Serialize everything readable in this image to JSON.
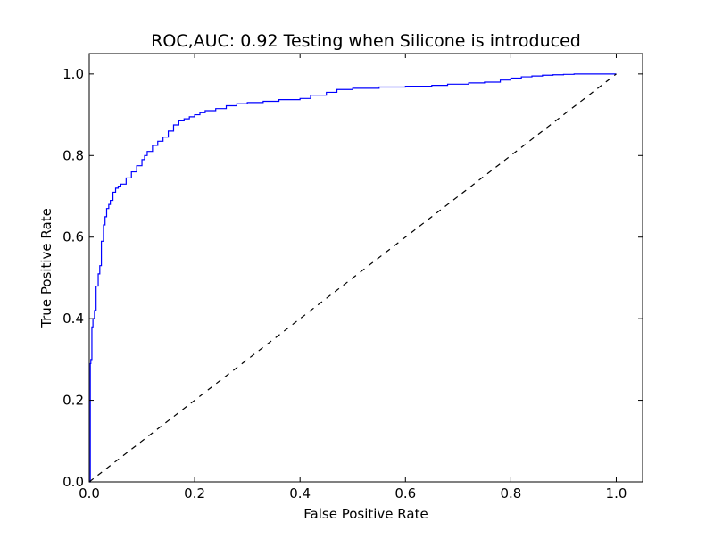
{
  "chart_data": {
    "type": "line",
    "title": "ROC,AUC: 0.92 Testing when Silicone is introduced",
    "xlabel": "False Positive Rate",
    "ylabel": "True Positive Rate",
    "xlim": [
      0.0,
      1.05
    ],
    "ylim": [
      0.0,
      1.05
    ],
    "xticks": [
      "0.0",
      "0.2",
      "0.4",
      "0.6",
      "0.8",
      "1.0"
    ],
    "yticks": [
      "0.0",
      "0.2",
      "0.4",
      "0.6",
      "0.8",
      "1.0"
    ],
    "grid": false,
    "legend": "none",
    "series": [
      {
        "color": "#0000ff",
        "style": "solid",
        "step": true,
        "x": [
          0.0,
          0.002,
          0.003,
          0.005,
          0.007,
          0.01,
          0.013,
          0.017,
          0.02,
          0.023,
          0.025,
          0.027,
          0.03,
          0.033,
          0.037,
          0.04,
          0.045,
          0.05,
          0.055,
          0.06,
          0.07,
          0.08,
          0.09,
          0.1,
          0.105,
          0.11,
          0.12,
          0.13,
          0.14,
          0.15,
          0.16,
          0.17,
          0.18,
          0.19,
          0.2,
          0.21,
          0.22,
          0.24,
          0.26,
          0.28,
          0.3,
          0.33,
          0.36,
          0.4,
          0.42,
          0.45,
          0.47,
          0.5,
          0.55,
          0.6,
          0.65,
          0.68,
          0.7,
          0.72,
          0.75,
          0.78,
          0.8,
          0.82,
          0.84,
          0.86,
          0.88,
          0.9,
          0.92,
          0.95,
          1.0
        ],
        "y": [
          0.0,
          0.29,
          0.3,
          0.38,
          0.4,
          0.42,
          0.48,
          0.51,
          0.53,
          0.59,
          0.59,
          0.63,
          0.65,
          0.67,
          0.68,
          0.69,
          0.71,
          0.72,
          0.725,
          0.73,
          0.745,
          0.76,
          0.775,
          0.79,
          0.8,
          0.81,
          0.825,
          0.835,
          0.845,
          0.86,
          0.875,
          0.885,
          0.89,
          0.895,
          0.9,
          0.905,
          0.91,
          0.915,
          0.922,
          0.927,
          0.93,
          0.933,
          0.937,
          0.94,
          0.948,
          0.955,
          0.962,
          0.965,
          0.968,
          0.97,
          0.972,
          0.975,
          0.975,
          0.978,
          0.98,
          0.985,
          0.99,
          0.993,
          0.995,
          0.997,
          0.998,
          0.999,
          1.0,
          1.0,
          1.0
        ]
      },
      {
        "color": "#000000",
        "style": "dashed",
        "step": false,
        "x": [
          0.0,
          1.0
        ],
        "y": [
          0.0,
          1.0
        ]
      }
    ]
  }
}
